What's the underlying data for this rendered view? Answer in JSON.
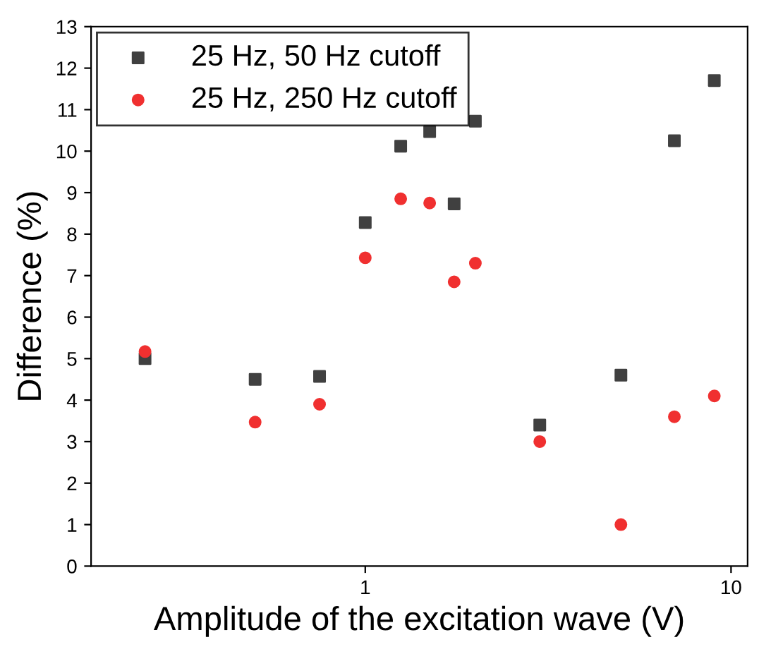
{
  "chart_data": {
    "type": "scatter",
    "xlabel": "Amplitude of the excitation wave (V)",
    "ylabel": "Difference (%)",
    "x": [
      0.25,
      0.5,
      0.75,
      1,
      1.25,
      1.5,
      1.75,
      2,
      3,
      5,
      7,
      9
    ],
    "series": [
      {
        "name": "25 Hz, 50 Hz cutoff",
        "color": "#404040",
        "marker": "square",
        "values": [
          5.0,
          4.5,
          4.57,
          8.28,
          10.12,
          10.47,
          8.73,
          10.72,
          3.4,
          4.6,
          10.25,
          11.7
        ]
      },
      {
        "name": "25 Hz, 250 Hz cutoff",
        "color": "#f03030",
        "marker": "circle",
        "values": [
          5.17,
          3.47,
          3.9,
          7.43,
          8.85,
          8.75,
          6.85,
          7.3,
          3.0,
          1.0,
          3.6,
          4.1
        ]
      }
    ],
    "log": "x",
    "xlim": [
      0.178,
      11.1
    ],
    "xticks": [
      1,
      10
    ],
    "ylim": [
      0,
      13
    ],
    "yticks": [
      0,
      1,
      2,
      3,
      4,
      5,
      6,
      7,
      8,
      9,
      10,
      11,
      12,
      13
    ],
    "grid": false,
    "legend": "top left"
  }
}
